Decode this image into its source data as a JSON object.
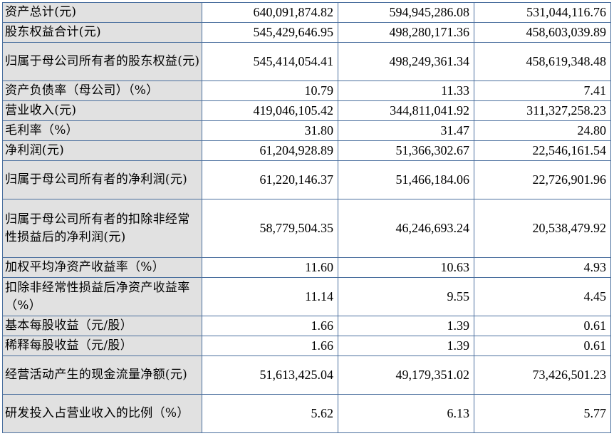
{
  "rows": [
    {
      "label": "资产总计(元)",
      "v1": "640,091,874.82",
      "v2": "594,945,286.08",
      "v3": "531,044,116.76"
    },
    {
      "label": "股东权益合计(元)",
      "v1": "545,429,646.95",
      "v2": "498,280,171.36",
      "v3": "458,603,039.89"
    },
    {
      "label": "归属于母公司所有者的股东权益(元)",
      "v1": "545,414,054.41",
      "v2": "498,249,361.34",
      "v3": "458,619,348.48"
    },
    {
      "label": "资产负债率（母公司）（%）",
      "v1": "10.79",
      "v2": "11.33",
      "v3": "7.41"
    },
    {
      "label": "营业收入(元)",
      "v1": "419,046,105.42",
      "v2": "344,811,041.92",
      "v3": "311,327,258.23"
    },
    {
      "label": "毛利率（%）",
      "v1": "31.80",
      "v2": "31.47",
      "v3": "24.80"
    },
    {
      "label": "净利润(元)",
      "v1": "61,204,928.89",
      "v2": "51,366,302.67",
      "v3": "22,546,161.54"
    },
    {
      "label": "归属于母公司所有者的净利润(元)",
      "v1": "61,220,146.37",
      "v2": "51,466,184.06",
      "v3": "22,726,901.96"
    },
    {
      "label": "归属于母公司所有者的扣除非经常性损益后的净利润(元)",
      "v1": "58,779,504.35",
      "v2": "46,246,693.24",
      "v3": "20,538,479.92"
    },
    {
      "label": "加权平均净资产收益率（%）",
      "v1": "11.60",
      "v2": "10.63",
      "v3": "4.93"
    },
    {
      "label": "扣除非经常性损益后净资产收益率（%）",
      "v1": "11.14",
      "v2": "9.55",
      "v3": "4.45"
    },
    {
      "label": "基本每股收益（元/股）",
      "v1": "1.66",
      "v2": "1.39",
      "v3": "0.61"
    },
    {
      "label": "稀释每股收益（元/股）",
      "v1": "1.66",
      "v2": "1.39",
      "v3": "0.61"
    },
    {
      "label": "经营活动产生的现金流量净额(元)",
      "v1": "51,613,425.04",
      "v2": "49,179,351.02",
      "v3": "73,426,501.23"
    },
    {
      "label": "研发投入占营业收入的比例（%）",
      "v1": "5.62",
      "v2": "6.13",
      "v3": "5.77"
    }
  ]
}
